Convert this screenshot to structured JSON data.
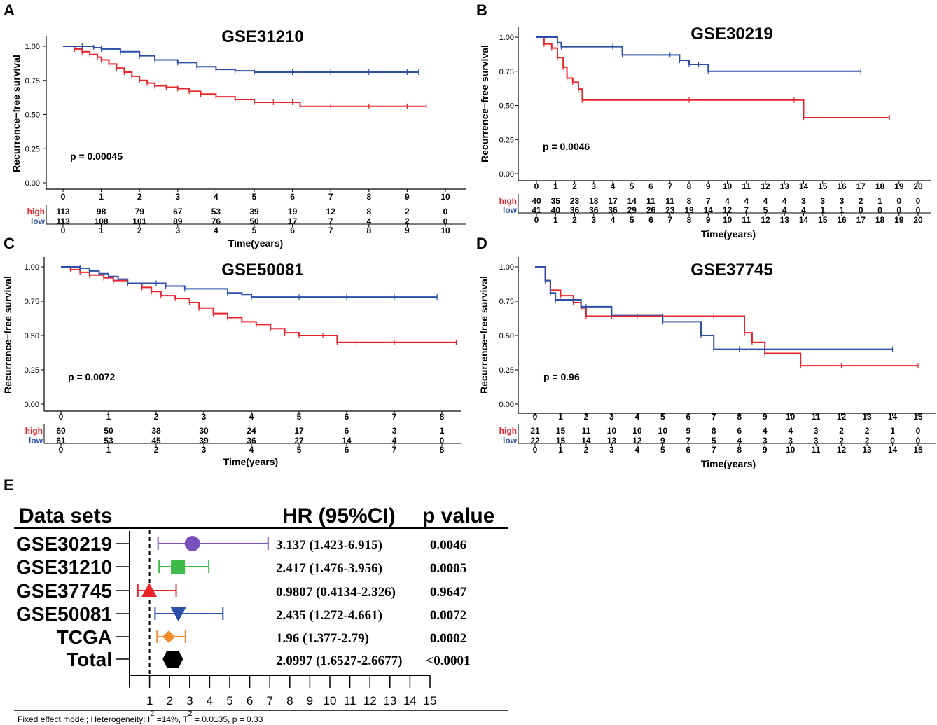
{
  "colors": {
    "high": "#e8242a",
    "low": "#2b4fa8",
    "axis": "#000000"
  },
  "chart_data": [
    {
      "panel": "A",
      "type": "line",
      "title": "GSE31210",
      "ylabel": "Recurrence−free survival",
      "xlabel": "Time(years)",
      "p_text": "p = 0.00045",
      "xlim": [
        0,
        10
      ],
      "ylim": [
        0,
        1
      ],
      "xticks": [
        0,
        1,
        2,
        3,
        4,
        5,
        6,
        7,
        8,
        9,
        10
      ],
      "yticks": [
        "0.00",
        "0.25",
        "0.50",
        "0.75",
        "1.00"
      ],
      "series": [
        {
          "name": "high",
          "color": "#e8242a",
          "x": [
            0,
            0.3,
            0.5,
            0.7,
            0.9,
            1.0,
            1.2,
            1.4,
            1.6,
            1.8,
            2.0,
            2.2,
            2.4,
            2.7,
            3.0,
            3.3,
            3.6,
            4.0,
            4.5,
            5.0,
            5.5,
            6.0,
            6.2,
            7.0,
            8.0,
            9.0,
            9.5
          ],
          "y": [
            1.0,
            0.98,
            0.96,
            0.94,
            0.92,
            0.9,
            0.87,
            0.84,
            0.81,
            0.78,
            0.75,
            0.73,
            0.71,
            0.7,
            0.69,
            0.67,
            0.65,
            0.63,
            0.61,
            0.59,
            0.59,
            0.59,
            0.56,
            0.56,
            0.56,
            0.56,
            0.56
          ]
        },
        {
          "name": "low",
          "color": "#2b4fa8",
          "x": [
            0,
            0.5,
            0.8,
            1.0,
            1.5,
            2.0,
            2.4,
            3.0,
            3.5,
            4.0,
            4.5,
            5.0,
            6.0,
            7.0,
            8.0,
            9.0,
            9.3
          ],
          "y": [
            1.0,
            1.0,
            0.99,
            0.98,
            0.96,
            0.93,
            0.9,
            0.88,
            0.85,
            0.83,
            0.82,
            0.81,
            0.81,
            0.81,
            0.81,
            0.81,
            0.81
          ]
        }
      ],
      "risk_table": {
        "times": [
          "0",
          "1",
          "2",
          "3",
          "4",
          "5",
          "6",
          "7",
          "8",
          "9",
          "10"
        ],
        "high": [
          "113",
          "98",
          "79",
          "67",
          "53",
          "39",
          "19",
          "12",
          "8",
          "2",
          "0"
        ],
        "low": [
          "113",
          "108",
          "101",
          "89",
          "76",
          "50",
          "17",
          "7",
          "4",
          "2",
          "0"
        ]
      }
    },
    {
      "panel": "B",
      "type": "line",
      "title": "GSE30219",
      "ylabel": "Recurrence−free survival",
      "xlabel": "Time(years)",
      "p_text": "p = 0.0046",
      "xlim": [
        0,
        20
      ],
      "ylim": [
        0,
        1
      ],
      "xticks": [
        0,
        1,
        2,
        3,
        4,
        5,
        6,
        7,
        8,
        9,
        10,
        11,
        12,
        13,
        14,
        15,
        16,
        17,
        18,
        19,
        20
      ],
      "yticks": [
        "0.00",
        "0.25",
        "0.50",
        "0.75",
        "1.00"
      ],
      "series": [
        {
          "name": "high",
          "color": "#e8242a",
          "x": [
            0,
            0.4,
            0.8,
            1.1,
            1.4,
            1.6,
            1.9,
            2.2,
            2.4,
            8,
            13.5,
            14.0,
            18.5
          ],
          "y": [
            1.0,
            0.95,
            0.92,
            0.85,
            0.78,
            0.7,
            0.67,
            0.62,
            0.54,
            0.54,
            0.54,
            0.41,
            0.41
          ]
        },
        {
          "name": "low",
          "color": "#2b4fa8",
          "x": [
            0,
            1.1,
            1.3,
            4.0,
            4.5,
            7.0,
            7.5,
            8.0,
            8.5,
            9.0,
            17
          ],
          "y": [
            1.0,
            0.96,
            0.93,
            0.93,
            0.87,
            0.87,
            0.83,
            0.8,
            0.8,
            0.75,
            0.75
          ]
        }
      ],
      "risk_table": {
        "times": [
          "0",
          "1",
          "2",
          "3",
          "4",
          "5",
          "6",
          "7",
          "8",
          "9",
          "10",
          "11",
          "12",
          "13",
          "14",
          "15",
          "16",
          "17",
          "18",
          "19",
          "20"
        ],
        "high": [
          "40",
          "35",
          "23",
          "18",
          "17",
          "14",
          "11",
          "11",
          "8",
          "7",
          "4",
          "4",
          "4",
          "4",
          "3",
          "3",
          "3",
          "2",
          "1",
          "0",
          "0"
        ],
        "low": [
          "41",
          "40",
          "36",
          "36",
          "36",
          "29",
          "26",
          "23",
          "19",
          "14",
          "12",
          "7",
          "5",
          "4",
          "4",
          "1",
          "1",
          "0",
          "0",
          "0",
          "0"
        ]
      },
      "bottom_ticks": [
        "0",
        "1",
        "2",
        "3",
        "4",
        "5",
        "6",
        "7",
        "8",
        "9",
        "10",
        "11",
        "12",
        "13",
        "14",
        "15",
        "16",
        "17",
        "18",
        "19",
        "20"
      ]
    },
    {
      "panel": "C",
      "type": "line",
      "title": "GSE50081",
      "ylabel": "Recurrence−free survival",
      "xlabel": "Time(years)",
      "p_text": "p = 0.0072",
      "xlim": [
        0,
        8
      ],
      "ylim": [
        0,
        1
      ],
      "xticks": [
        0,
        1,
        2,
        3,
        4,
        5,
        6,
        7,
        8
      ],
      "yticks": [
        "0.00",
        "0.25",
        "0.50",
        "0.75",
        "1.00"
      ],
      "series": [
        {
          "name": "high",
          "color": "#e8242a",
          "x": [
            0,
            0.2,
            0.4,
            0.6,
            0.9,
            1.1,
            1.4,
            1.7,
            1.9,
            2.1,
            2.4,
            2.7,
            2.9,
            3.2,
            3.5,
            3.8,
            4.1,
            4.4,
            4.7,
            5.0,
            5.5,
            5.8,
            6.2,
            7.0,
            8.3
          ],
          "y": [
            1.0,
            0.98,
            0.96,
            0.94,
            0.92,
            0.9,
            0.88,
            0.85,
            0.82,
            0.79,
            0.77,
            0.74,
            0.7,
            0.66,
            0.63,
            0.6,
            0.58,
            0.55,
            0.52,
            0.5,
            0.5,
            0.45,
            0.45,
            0.45,
            0.45
          ]
        },
        {
          "name": "low",
          "color": "#2b4fa8",
          "x": [
            0,
            0.4,
            0.6,
            0.8,
            1.0,
            1.2,
            1.4,
            2.0,
            2.2,
            2.6,
            3.5,
            3.8,
            4.0,
            5.0,
            6.0,
            7.0,
            7.9
          ],
          "y": [
            1.0,
            0.99,
            0.97,
            0.95,
            0.93,
            0.91,
            0.88,
            0.88,
            0.86,
            0.84,
            0.81,
            0.8,
            0.78,
            0.78,
            0.78,
            0.78,
            0.78
          ]
        }
      ],
      "risk_table": {
        "times": [
          "0",
          "1",
          "2",
          "3",
          "4",
          "5",
          "6",
          "7",
          "8"
        ],
        "high": [
          "60",
          "50",
          "38",
          "30",
          "24",
          "17",
          "6",
          "3",
          "1"
        ],
        "low": [
          "61",
          "53",
          "45",
          "39",
          "36",
          "27",
          "14",
          "4",
          "0"
        ]
      }
    },
    {
      "panel": "D",
      "type": "line",
      "title": "GSE37745",
      "ylabel": "Recurrence−free survival",
      "xlabel": "Time(years)",
      "p_text": "p = 0.96",
      "xlim": [
        0,
        15
      ],
      "ylim": [
        0,
        1
      ],
      "xticks": [
        0,
        1,
        2,
        3,
        4,
        5,
        6,
        7,
        8,
        9,
        10,
        11,
        12,
        13,
        14,
        15
      ],
      "yticks": [
        "0.00",
        "0.25",
        "0.50",
        "0.75",
        "1.00"
      ],
      "series": [
        {
          "name": "high",
          "color": "#e8242a",
          "x": [
            0,
            0.4,
            0.6,
            1.0,
            1.5,
            1.8,
            2.0,
            3.0,
            4.0,
            5.0,
            7.0,
            8.2,
            8.5,
            9.0,
            10.4,
            12.0,
            15.0
          ],
          "y": [
            1.0,
            0.9,
            0.83,
            0.79,
            0.74,
            0.7,
            0.64,
            0.64,
            0.64,
            0.64,
            0.64,
            0.52,
            0.45,
            0.37,
            0.28,
            0.28,
            0.28
          ]
        },
        {
          "name": "low",
          "color": "#2b4fa8",
          "x": [
            0,
            0.4,
            0.6,
            0.8,
            1.8,
            2.0,
            3.0,
            5.0,
            6.5,
            7.0,
            8.0,
            9.0,
            14.0
          ],
          "y": [
            1.0,
            0.9,
            0.81,
            0.76,
            0.71,
            0.71,
            0.65,
            0.6,
            0.5,
            0.4,
            0.4,
            0.4,
            0.4
          ]
        }
      ],
      "risk_table": {
        "times": [
          "0",
          "1",
          "2",
          "3",
          "4",
          "5",
          "6",
          "7",
          "8",
          "9",
          "10",
          "11",
          "12",
          "13",
          "14",
          "15"
        ],
        "high": [
          "21",
          "15",
          "11",
          "10",
          "10",
          "10",
          "9",
          "8",
          "6",
          "4",
          "4",
          "3",
          "2",
          "2",
          "1",
          "0"
        ],
        "low": [
          "22",
          "15",
          "14",
          "13",
          "12",
          "9",
          "7",
          "5",
          "4",
          "3",
          "3",
          "3",
          "2",
          "2",
          "0",
          "0"
        ]
      }
    },
    {
      "panel": "E",
      "type": "forest",
      "headers": {
        "sets": "Data sets",
        "hr": "HR  (95%CI)",
        "p": "p value"
      },
      "xlim": [
        0,
        15
      ],
      "xticks": [
        "1",
        "2",
        "3",
        "4",
        "5",
        "6",
        "7",
        "8",
        "9",
        "10",
        "11",
        "12",
        "13",
        "14",
        "15"
      ],
      "reference_line": 1,
      "footnote_prefix": "Fixed effect model; Heterogeneity: ",
      "footnote_i": "I",
      "footnote_i_value": " =14%, ",
      "footnote_t": "T",
      "footnote_t_value": " = 0.0135, p = 0.33",
      "footnote_sup": "2",
      "rows": [
        {
          "name": "GSE30219",
          "hr": 3.137,
          "lo": 1.423,
          "hi": 6.915,
          "hr_text": "3.137 (1.423-6.915)",
          "p": "0.0046",
          "color": "#7b4fbb",
          "marker": "circle"
        },
        {
          "name": "GSE31210",
          "hr": 2.417,
          "lo": 1.476,
          "hi": 3.956,
          "hr_text": "2.417 (1.476-3.956)",
          "p": "0.0005",
          "color": "#3dba4a",
          "marker": "square"
        },
        {
          "name": "GSE37745",
          "hr": 0.9807,
          "lo": 0.4134,
          "hi": 2.326,
          "hr_text": "0.9807 (0.4134-2.326)",
          "p": "0.9647",
          "color": "#e8242a",
          "marker": "triangle-up"
        },
        {
          "name": "GSE50081",
          "hr": 2.435,
          "lo": 1.272,
          "hi": 4.661,
          "hr_text": "2.435 (1.272-4.661)",
          "p": "0.0072",
          "color": "#2b4fa8",
          "marker": "triangle-down"
        },
        {
          "name": "TCGA",
          "hr": 1.96,
          "lo": 1.377,
          "hi": 2.79,
          "hr_text": "1.96 (1.377-2.79)",
          "p": "0.0002",
          "color": "#f08a2a",
          "marker": "diamond"
        },
        {
          "name": "Total",
          "hr": 2.0997,
          "lo": 1.6527,
          "hi": 2.6677,
          "hr_text": "2.0997 (1.6527-2.6677)",
          "p": "<0.0001",
          "color": "#000000",
          "marker": "hexagon"
        }
      ]
    }
  ]
}
